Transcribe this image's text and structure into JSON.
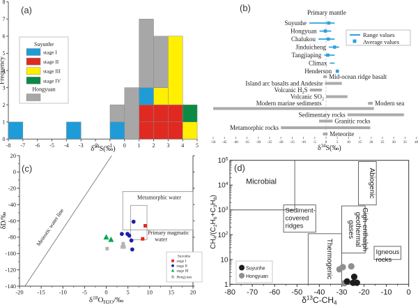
{
  "figure_title": "Four-panel sulfur / water / gas isotope geochemistry figure",
  "chart_data": [
    {
      "panel_tag": "(a)",
      "type": "bar",
      "xlabel": "δ^{34}S(‰)",
      "ylabel": "Frequency",
      "xlim": [
        -8,
        5
      ],
      "ylim": [
        0,
        8
      ],
      "xticks": [
        -8,
        -7,
        -6,
        -5,
        -4,
        -3,
        -2,
        -1,
        0,
        1,
        2,
        3,
        4,
        5
      ],
      "yticks": [
        0,
        1,
        2,
        3,
        4,
        5,
        6,
        7,
        8
      ],
      "bin_width": 1,
      "colors": {
        "stage I": "#1f9cd8",
        "stage II": "#e02a21",
        "stage III": "#ffef00",
        "stage IV": "#0a8a45",
        "Hongyuan": "#a7a7a7"
      },
      "bars": [
        {
          "x0": -8,
          "stack": [
            [
              "stage I",
              1
            ]
          ]
        },
        {
          "x0": -4,
          "stack": [
            [
              "stage I",
              1
            ]
          ]
        },
        {
          "x0": -1,
          "stack": [
            [
              "stage I",
              1
            ],
            [
              "Hongyuan",
              1
            ]
          ]
        },
        {
          "x0": 0,
          "stack": [
            [
              "Hongyuan",
              3
            ]
          ]
        },
        {
          "x0": 1,
          "stack": [
            [
              "stage II",
              1
            ],
            [
              "stage II",
              1
            ],
            [
              "stage I",
              1
            ],
            [
              "Hongyuan",
              4
            ]
          ]
        },
        {
          "x0": 2,
          "stack": [
            [
              "stage II",
              1
            ],
            [
              "stage II",
              1
            ],
            [
              "stage III",
              1
            ],
            [
              "Hongyuan",
              3
            ]
          ]
        },
        {
          "x0": 3,
          "stack": [
            [
              "stage II",
              1
            ],
            [
              "stage II",
              1
            ],
            [
              "stage III",
              4
            ]
          ]
        },
        {
          "x0": 4,
          "stack": [
            [
              "stage III",
              1
            ],
            [
              "stage IV",
              1
            ]
          ]
        }
      ],
      "legend": {
        "group": "Suyunhe",
        "items": [
          "stage I",
          "stage II",
          "stage III",
          "stage IV"
        ],
        "group2": "Hongyuan"
      }
    },
    {
      "panel_tag": "(b)",
      "type": "range",
      "xlabel": "δ^{34}S(‰)",
      "xlim": [
        -50,
        40
      ],
      "xticks": [
        -50,
        -45,
        -40,
        -35,
        -30,
        -25,
        -20,
        -15,
        -10,
        -5,
        0,
        5,
        10,
        15,
        20,
        25,
        30,
        35,
        40
      ],
      "color_blue": "#2e9fdf",
      "color_gray": "#ababab",
      "reference": {
        "x": 0,
        "label": "Primary mantle"
      },
      "deposits": [
        {
          "label": "Suyunhe",
          "range": [
            -7.4,
            3.8
          ],
          "avg": 1.2
        },
        {
          "label": "Hongyuan",
          "range": [
            -2.9,
            2.3
          ],
          "avg": -0.3
        },
        {
          "label": "Chalukou",
          "range": [
            -3.4,
            3.8
          ],
          "avg": 1.0
        },
        {
          "label": "Jinduicheng",
          "range": [
            1.2,
            5.8
          ],
          "avg": 3.8
        },
        {
          "label": "Tangjiaping",
          "range": [
            -0.8,
            3.8
          ],
          "avg": 0.8
        },
        {
          "label": "Climax",
          "range": [
            1.7,
            3.8
          ],
          "avg": null
        },
        {
          "label": "Henderson",
          "range": null,
          "avg": 5.0
        }
      ],
      "reservoirs": [
        {
          "label": "Mid-ocean ridge basalt",
          "range": [
            -1.2,
            0.4
          ],
          "side": "right"
        },
        {
          "label": "Island arc basalts and Andesite",
          "range": [
            -0.5,
            7.0
          ],
          "side": "left"
        },
        {
          "label": "Volcanic H_{2}S",
          "range": [
            -7.2,
            -1.8
          ],
          "side": "left"
        },
        {
          "label": "Volcanic SO_{2}",
          "range": [
            0,
            9.5
          ],
          "side": "left"
        },
        {
          "label": "Modern sea",
          "range": [
            18.6,
            20.7
          ],
          "side": "right"
        },
        {
          "label": "Modern marine sediments",
          "range": [
            -50,
            21.2
          ],
          "side": "left",
          "label_at": -1,
          "label_dy": -7.5
        },
        {
          "label": "Sedimentary rocks",
          "range": [
            9.5,
            34.5
          ],
          "side": "left"
        },
        {
          "label": "Granitic rocks",
          "range": [
            -3.1,
            2.9
          ],
          "side": "right"
        },
        {
          "label": "Metamorphic rocks",
          "range": [
            -20,
            19.6
          ],
          "side": "left"
        },
        {
          "label": "Meteorite",
          "range": [
            -1.4,
            0.7
          ],
          "side": "right"
        }
      ],
      "legend": {
        "range": "Range values",
        "average": "Average values"
      }
    },
    {
      "panel_tag": "(c)",
      "type": "scatter",
      "xlabel": "δ^{18}O_{H2O}/‰",
      "ylabel": "δD/‰",
      "xlim": [
        -20,
        20
      ],
      "ylim": [
        -140,
        20
      ],
      "xticks": [
        -20,
        -15,
        -10,
        -5,
        0,
        5,
        10,
        15,
        20
      ],
      "yticks": [
        20,
        0,
        -20,
        -40,
        -60,
        -80,
        -100,
        -120,
        -140
      ],
      "meteoric_line": {
        "label": "Meteoric water line",
        "from": [
          -18.75,
          -140
        ],
        "to": [
          1.25,
          20
        ]
      },
      "fields": [
        {
          "label": "Metamorphic water",
          "x": [
            3.8,
            20
          ],
          "y": [
            -71,
            -24
          ]
        },
        {
          "label": "Primary magmatic water",
          "label_lines": [
            "Primary  magmatic",
            "water"
          ],
          "x": [
            5.6,
            9.4
          ],
          "y": [
            -83,
            -41
          ]
        }
      ],
      "series": [
        {
          "name": "stage I",
          "marker": "square",
          "color": "#e02a21",
          "points": [
            [
              9.0,
              -66
            ],
            [
              8.4,
              -82
            ]
          ]
        },
        {
          "name": "stage II",
          "marker": "circle",
          "color": "#1f1fae",
          "points": [
            [
              6.3,
              -61
            ],
            [
              3.6,
              -76
            ],
            [
              4.9,
              -76
            ],
            [
              5.3,
              -78
            ],
            [
              5.8,
              -84
            ],
            [
              6.0,
              -95
            ]
          ]
        },
        {
          "name": "stage III",
          "marker": "triangle",
          "color": "#00a651",
          "points": [
            [
              0.0,
              -80
            ],
            [
              1.1,
              -83
            ]
          ]
        },
        {
          "name": "Hongyuan",
          "marker": "square",
          "color": "#b5b5b5",
          "points": [
            [
              0.2,
              -94
            ],
            [
              3.9,
              -88
            ],
            [
              3.7,
              -92
            ],
            [
              4.1,
              -92
            ]
          ]
        }
      ],
      "legend": {
        "title": "Suyunhe"
      }
    },
    {
      "panel_tag": "(d)",
      "type": "scatter-log",
      "xlabel": "δ^{13}C-CH_{4}",
      "ylabel": "CH_{4}/(C_{2}H_{6}+C_{3}H_{8})",
      "xlim": [
        -80,
        0
      ],
      "xticks": [
        -80,
        -70,
        -60,
        -50,
        -40,
        -30,
        -20,
        -10,
        0
      ],
      "yticks": [
        "1",
        "10",
        "10^{2}",
        "10^{3}",
        "10^{4}",
        "10^{5}"
      ],
      "boundary": {
        "hline_y": 1000,
        "hline_x": [
          -80,
          -51
        ],
        "vline_x": -51
      },
      "fields": [
        {
          "name": "Microbial",
          "lines": [
            "Microbial"
          ],
          "pos": [
            -66,
            4.05
          ]
        },
        {
          "name": "Sediment-covered ridges",
          "lines": [
            "Sediment-",
            "covered",
            "ridges"
          ],
          "box": {
            "x": [
              -56,
              -41.6
            ],
            "ydec": [
              2.1,
              3.2
            ]
          }
        },
        {
          "name": "Thermogenic",
          "lines": [
            "Thermogenic"
          ],
          "rot": true,
          "box": {
            "x": [
              -45,
              -30
            ],
            "ydec": [
              0,
              2.04
            ]
          }
        },
        {
          "name": "Gigh-enthalph geothermal gases",
          "lines": [
            "Gigh-enthalph",
            "geothermal",
            "gases"
          ],
          "rot": true,
          "box": {
            "x": [
              -30,
              -19.5
            ],
            "ydec": [
              1.26,
              3.16
            ]
          }
        },
        {
          "name": "Abiogenic",
          "lines": [
            "Abiogenic"
          ],
          "rot": true,
          "box": {
            "x": [
              -22.5,
              -14.5
            ],
            "ydec": [
              3.2,
              4.95
            ]
          }
        },
        {
          "name": "Igneous rocks",
          "lines": [
            "Igneous",
            "rocks"
          ],
          "box": {
            "x": [
              -15.5,
              -3.5
            ],
            "ydec": [
              1.0,
              1.53
            ]
          }
        }
      ],
      "series": [
        {
          "name": "Suyunhe",
          "color": "#1c1c1c",
          "points": [
            [
              -24.4,
              2.0
            ],
            [
              -27.6,
              1.3
            ],
            [
              -24.9,
              1.15
            ],
            [
              -23.2,
              1.15
            ]
          ]
        },
        {
          "name": "Hongyuan",
          "color": "#8f8f8f",
          "points": [
            [
              -31.0,
              4.0
            ],
            [
              -29.5,
              4.9
            ],
            [
              -25.7,
              5.3
            ],
            [
              -28.8,
              1.1
            ]
          ]
        }
      ]
    }
  ]
}
